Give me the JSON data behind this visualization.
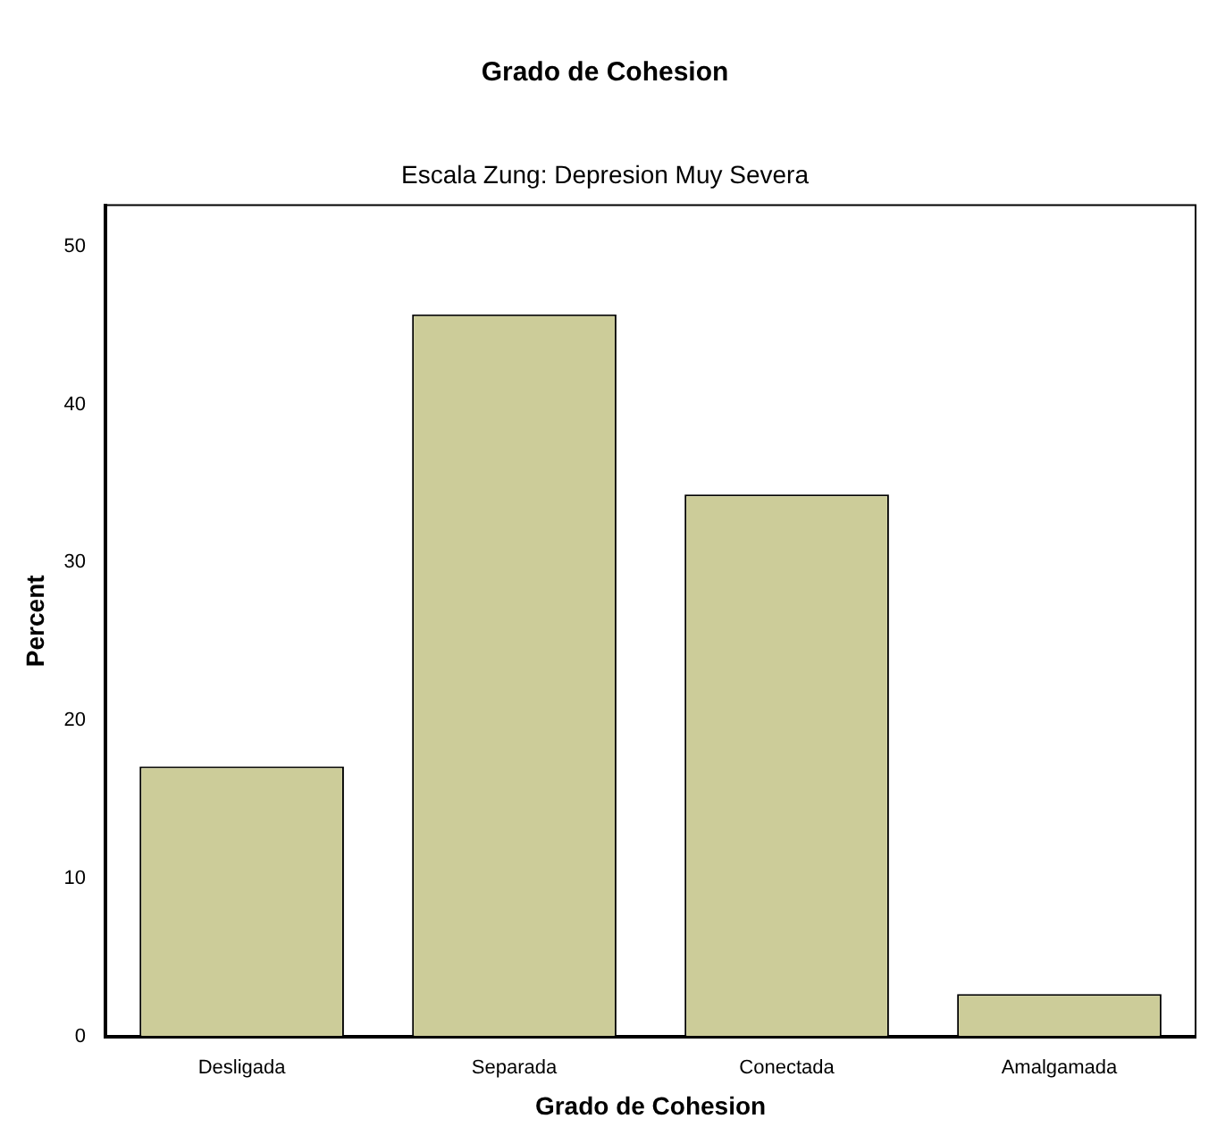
{
  "chart_data": {
    "type": "bar",
    "title": "Grado de Cohesion",
    "subtitle": "Escala Zung: Depresion Muy Severa",
    "xlabel": "Grado de Cohesion",
    "ylabel": "Percent",
    "categories": [
      "Desligada",
      "Separada",
      "Conectada",
      "Amalgamada"
    ],
    "values": [
      17.1,
      45.7,
      34.3,
      2.7
    ],
    "color": "#cccc99",
    "ylim": [
      0,
      52.6
    ],
    "yticks": [
      0,
      10,
      20,
      30,
      40,
      50
    ],
    "grid": false,
    "legend": false
  }
}
